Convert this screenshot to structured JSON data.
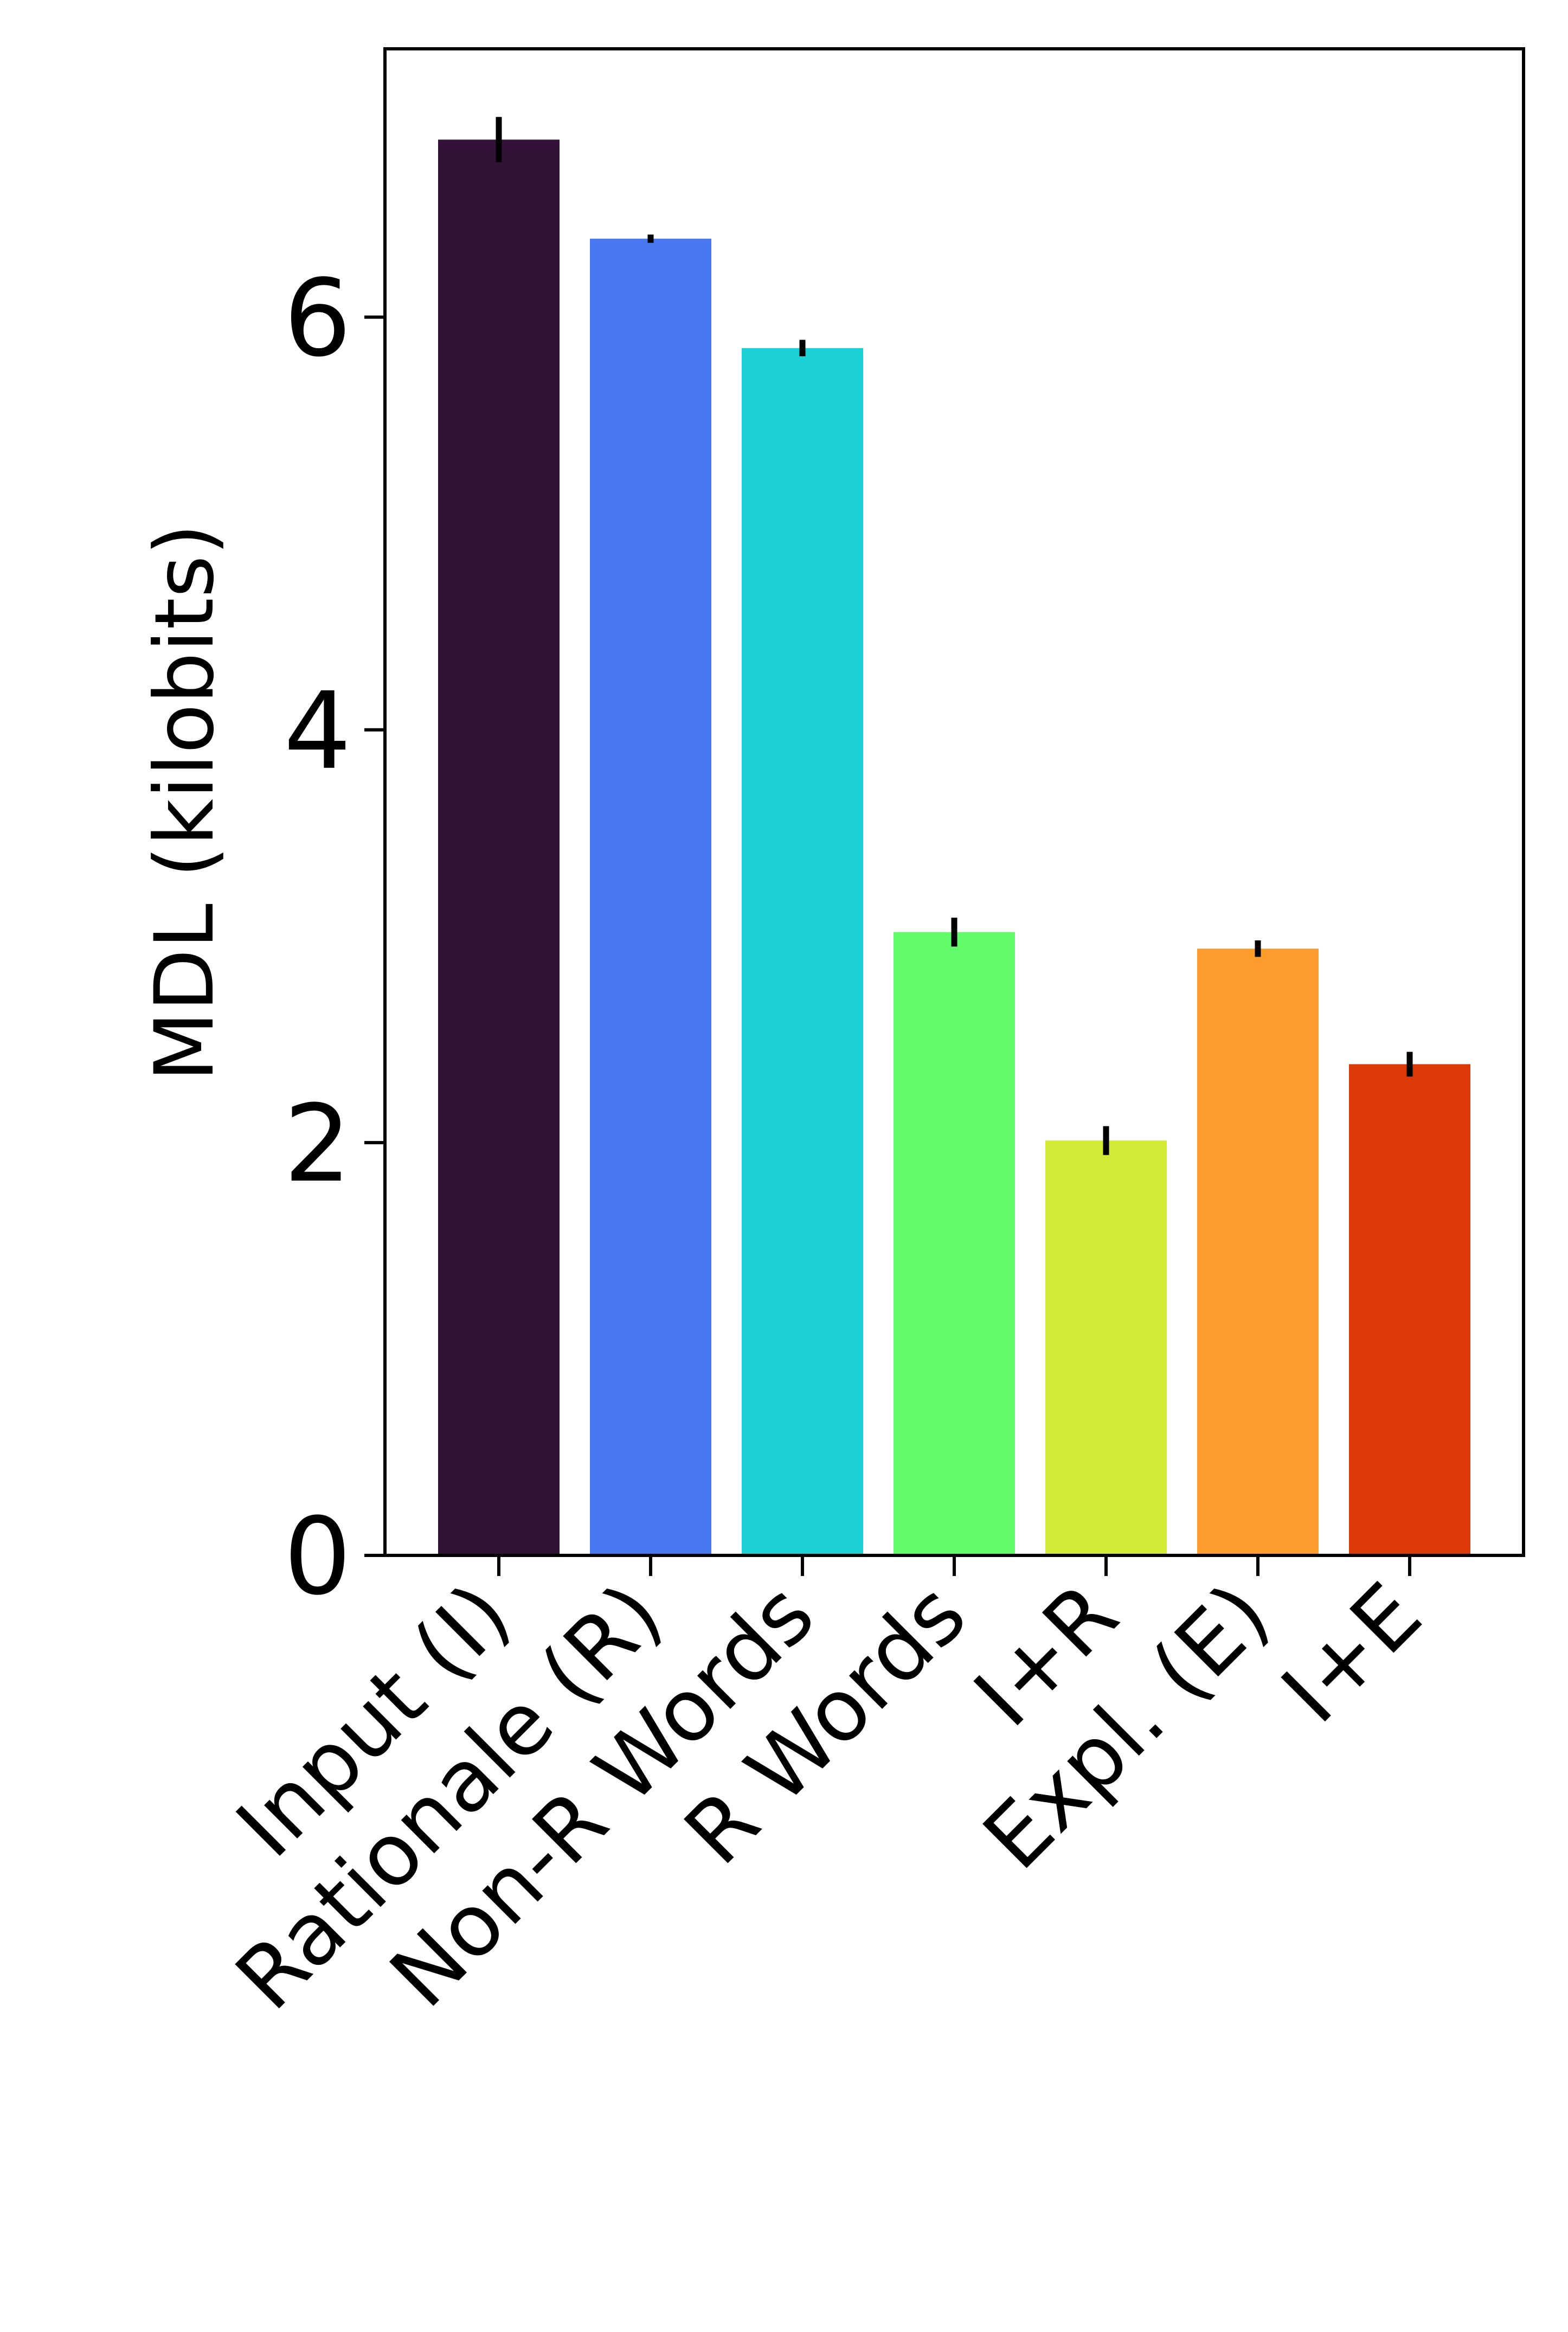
{
  "chart_data": {
    "type": "bar",
    "title": "",
    "xlabel": "",
    "ylabel": "MDL (kilobits)",
    "ylim": [
      0,
      7.3
    ],
    "yticks": [
      0,
      2,
      4,
      6
    ],
    "grid": false,
    "legend": "none",
    "categories": [
      "Input (I)",
      "Rationale (R)",
      "Non-R Words",
      "R Words",
      "I+R",
      "Expl. (E)",
      "I+E"
    ],
    "values": [
      6.86,
      6.38,
      5.85,
      3.02,
      2.01,
      2.94,
      2.38
    ],
    "errors": [
      0.11,
      0.02,
      0.04,
      0.07,
      0.07,
      0.04,
      0.06
    ],
    "colors": [
      "#321237",
      "#4777ef",
      "#1bd0d5",
      "#62fc6b",
      "#d2e935",
      "#fe9b2d",
      "#db3a07"
    ]
  }
}
